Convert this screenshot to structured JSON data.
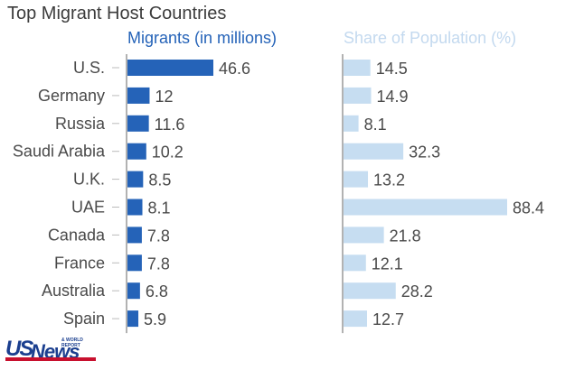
{
  "chart_data": {
    "type": "bar",
    "orientation": "horizontal",
    "title": "Top Migrant Host Countries",
    "categories": [
      "U.S.",
      "Germany",
      "Russia",
      "Saudi Arabia",
      "U.K.",
      "UAE",
      "Canada",
      "France",
      "Australia",
      "Spain"
    ],
    "series": [
      {
        "name": "Migrants (in millions)",
        "values": [
          46.6,
          12,
          11.6,
          10.2,
          8.5,
          8.1,
          7.8,
          7.8,
          6.8,
          5.9
        ],
        "labels": [
          "46.6",
          "12",
          "11.6",
          "10.2",
          "8.5",
          "8.1",
          "7.8",
          "7.8",
          "6.8",
          "5.9"
        ],
        "color": "#2563b8",
        "header_color": "#2563b8",
        "xlim": [
          0,
          46.6
        ]
      },
      {
        "name": "Share of Population (%)",
        "values": [
          14.5,
          14.9,
          8.1,
          32.3,
          13.2,
          88.4,
          21.8,
          12.1,
          28.2,
          12.7
        ],
        "labels": [
          "14.5",
          "14.9",
          "8.1",
          "32.3",
          "13.2",
          "88.4",
          "21.8",
          "12.1",
          "28.2",
          "12.7"
        ],
        "color": "#c6ddf1",
        "header_color": "#c3d9ef",
        "xlim": [
          0,
          88.4
        ]
      }
    ],
    "grid": false,
    "legend": "column headers above each panel"
  },
  "colors": {
    "label_text": "#4a4a4a",
    "axis_line": "#666666",
    "tick_mark": "#bbbbbb"
  },
  "logo": {
    "brand": "USNews",
    "us": "US",
    "news": "News",
    "tagline": "& WORLD REPORT"
  }
}
